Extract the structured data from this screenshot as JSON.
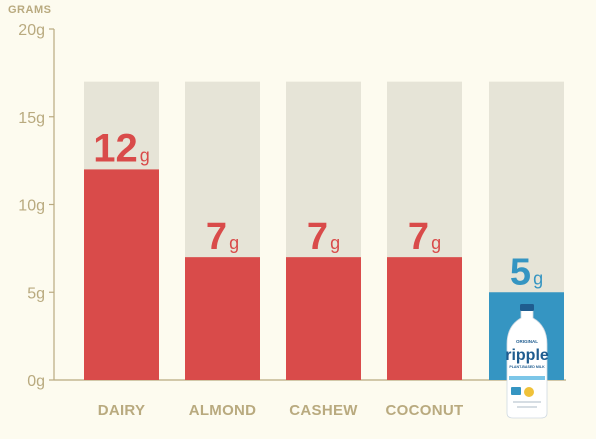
{
  "chart_data": {
    "type": "bar",
    "ylabel": "GRAMS",
    "ylim": [
      0,
      20
    ],
    "yticks": [
      "0g",
      "5g",
      "10g",
      "15g",
      "20g"
    ],
    "categories": [
      "DAIRY",
      "ALMOND",
      "CASHEW",
      "COCONUT",
      ""
    ],
    "values": [
      12,
      7,
      7,
      7,
      5
    ],
    "value_labels": [
      {
        "num": "12",
        "unit": "g"
      },
      {
        "num": "7",
        "unit": "g"
      },
      {
        "num": "7",
        "unit": "g"
      },
      {
        "num": "7",
        "unit": "g"
      },
      {
        "num": "5",
        "unit": "g"
      }
    ],
    "background_max": 17,
    "grid": false
  },
  "product": {
    "brand": "ripple",
    "variant": "ORIGINAL",
    "sub": "PLANT-BASED MILK"
  },
  "colors": {
    "page": "#fdfbef",
    "axis": "#b9aa7f",
    "track": "#e6e4d7",
    "bar": "#d94b4a",
    "highlight": "#3595c2",
    "label_red": "#d94b4a",
    "label_blue": "#3595c2"
  }
}
